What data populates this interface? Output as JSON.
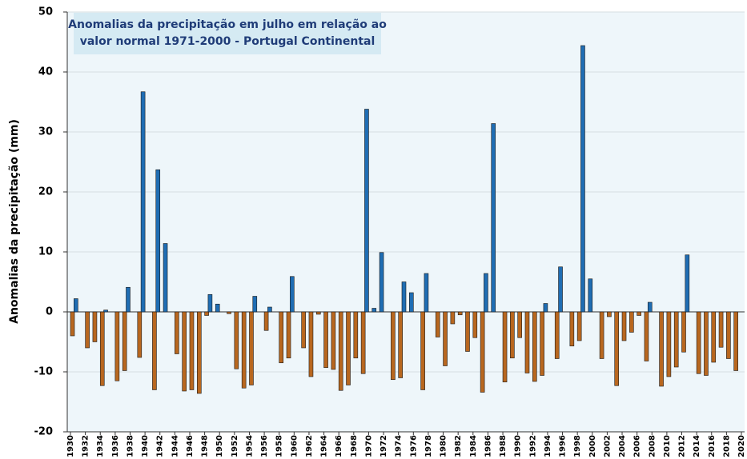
{
  "chart_data": {
    "type": "bar",
    "title": [
      "Anomalias da precipitação em julho em relação ao",
      "valor normal  1971-2000 - Portugal Continental"
    ],
    "ylabel": "Anomalias da precipitação (mm)",
    "positive_color": "#1f6db3",
    "negative_color": "#b8671f",
    "x": [
      1930,
      1931,
      1932,
      1933,
      1934,
      1935,
      1936,
      1937,
      1938,
      1939,
      1940,
      1941,
      1942,
      1943,
      1944,
      1945,
      1946,
      1947,
      1948,
      1949,
      1950,
      1951,
      1952,
      1953,
      1954,
      1955,
      1956,
      1957,
      1958,
      1959,
      1960,
      1961,
      1962,
      1963,
      1964,
      1965,
      1966,
      1967,
      1968,
      1969,
      1970,
      1971,
      1972,
      1973,
      1974,
      1975,
      1976,
      1977,
      1978,
      1979,
      1980,
      1981,
      1982,
      1983,
      1984,
      1985,
      1986,
      1987,
      1988,
      1989,
      1990,
      1991,
      1992,
      1993,
      1994,
      1995,
      1996,
      1997,
      1998,
      1999,
      2000,
      2001,
      2002,
      2003,
      2004,
      2005,
      2006,
      2007,
      2008,
      2009,
      2010,
      2011,
      2012,
      2013,
      2014,
      2015,
      2016,
      2017,
      2018,
      2019
    ],
    "values": [
      -4,
      2.2,
      -6,
      -5,
      -12.3,
      0.3,
      -11.5,
      -9.8,
      4.1,
      -7.6,
      36.7,
      -13,
      23.7,
      11.4,
      -7,
      -13.2,
      -13,
      -13.6,
      -0.6,
      2.9,
      1.3,
      -0.3,
      -9.5,
      -12.7,
      -12.2,
      2.6,
      -3.1,
      0.8,
      -8.5,
      -7.7,
      5.9,
      -6,
      -10.8,
      -0.4,
      -9.3,
      -9.6,
      -13.1,
      -12.2,
      -7.7,
      -10.3,
      33.8,
      0.6,
      9.9,
      -11.3,
      -11,
      5,
      3.2,
      -13,
      6.4,
      -4.2,
      -9,
      -2,
      -0.5,
      -6.6,
      -4.3,
      -13.4,
      6.4,
      31.4,
      -11.7,
      -7.7,
      -4.3,
      -10.2,
      -11.6,
      -10.6,
      1.4,
      -7.8,
      7.5,
      -5.7,
      -4.8,
      44.4,
      5.5,
      -7.8,
      -0.8,
      -12.3,
      -4.8,
      -3.4,
      -0.6,
      -8.2,
      1.6,
      -12.4,
      -10.8,
      -9.2,
      -6.7,
      9.5,
      -10.3,
      -10.6,
      -8.4,
      -5.9,
      -7.8,
      -9.8
    ],
    "xlim": [
      1930,
      2020
    ],
    "xticks": [
      1930,
      1932,
      1934,
      1936,
      1938,
      1940,
      1942,
      1944,
      1946,
      1948,
      1950,
      1952,
      1954,
      1956,
      1958,
      1960,
      1962,
      1964,
      1966,
      1968,
      1970,
      1972,
      1974,
      1976,
      1978,
      1980,
      1982,
      1984,
      1986,
      1988,
      1990,
      1992,
      1994,
      1996,
      1998,
      2000,
      2002,
      2004,
      2006,
      2008,
      2010,
      2012,
      2014,
      2016,
      2018,
      2020
    ],
    "ylim": [
      -20,
      50
    ],
    "yticks": [
      -20,
      -10,
      0,
      10,
      20,
      30,
      40,
      50
    ],
    "grid": true
  }
}
